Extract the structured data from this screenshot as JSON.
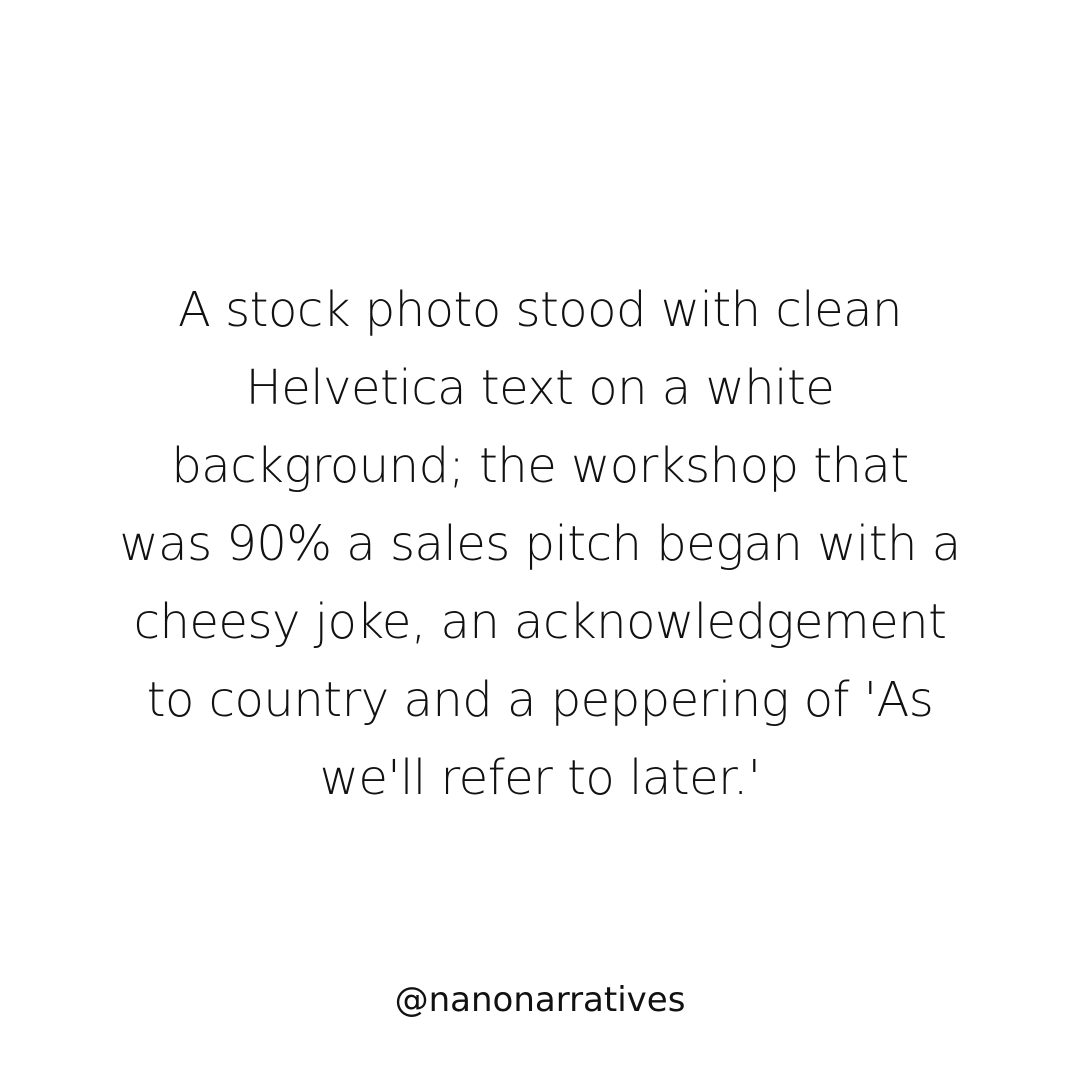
{
  "post": {
    "lines": [
      "A stock photo stood with clean",
      "Helvetica text on a white",
      "background; the workshop that",
      "was 90% a sales pitch began with a",
      "cheesy joke, an acknowledgement",
      "to country and a peppering of 'As",
      "we'll refer to later.'"
    ],
    "handle": "@nanonarratives"
  },
  "colors": {
    "background": "#ffffff",
    "text": "#111111"
  }
}
